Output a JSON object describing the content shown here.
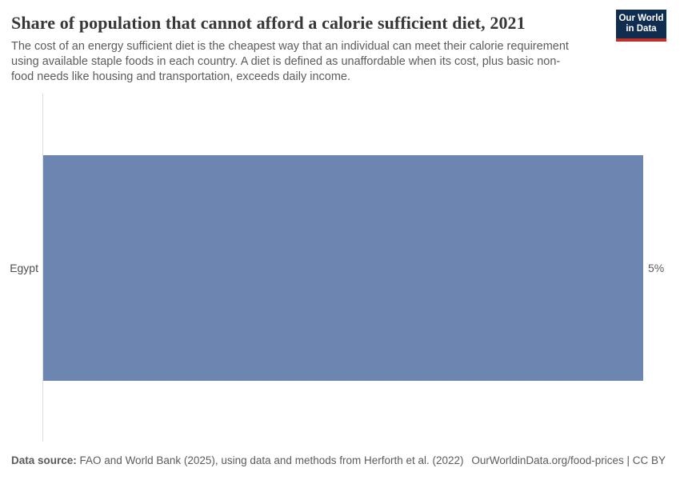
{
  "header": {
    "title": "Share of population that cannot afford a calorie sufficient diet, 2021",
    "subtitle": "The cost of an energy sufficient diet is the cheapest way that an individual can meet their calorie requirement using available staple foods in each country. A diet is defined as unaffordable when its cost, plus basic non-food needs like housing and transportation, exceeds daily income.",
    "logo": {
      "line1": "Our World",
      "line2": "in Data",
      "background_color": "#102d50",
      "accent_color": "#bc3228"
    }
  },
  "chart_data": {
    "type": "bar",
    "orientation": "horizontal",
    "title": "Share of population that cannot afford a calorie sufficient diet, 2021",
    "categories": [
      "Egypt"
    ],
    "values": [
      5
    ],
    "value_labels": [
      "5%"
    ],
    "unit": "%",
    "xlim": [
      0,
      5
    ],
    "bar_color": "#6c86b1",
    "grid": false,
    "legend": "none",
    "year": "2021"
  },
  "footer": {
    "datasource_label": "Data source:",
    "datasource_text": " FAO and World Bank (2025), using data and methods from Herforth et al. (2022)",
    "link_text": "OurWorldinData.org/food-prices | CC BY"
  }
}
